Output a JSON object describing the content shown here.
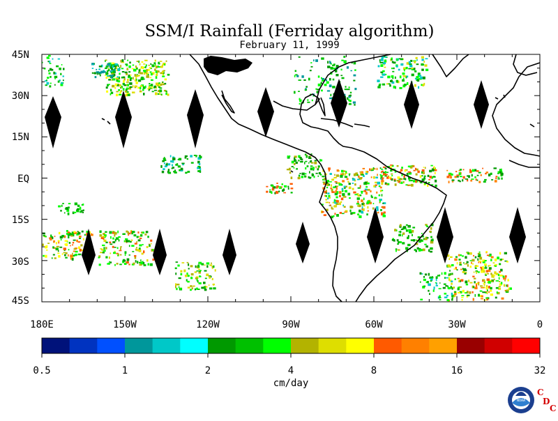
{
  "title": "SSM/I Rainfall (Ferriday algorithm)",
  "subtitle": "February 11, 1999",
  "lat_labels": [
    "45N",
    "30N",
    "15N",
    "EQ",
    "15S",
    "30S",
    "45S"
  ],
  "lon_labels": [
    "180E",
    "150W",
    "120W",
    "90W",
    "60W",
    "30W",
    "0"
  ],
  "colorbar": {
    "colors": [
      "#00127a",
      "#0033c0",
      "#0050ff",
      "#00979b",
      "#00c8c8",
      "#00ffff",
      "#009900",
      "#00c000",
      "#00ff00",
      "#b3b300",
      "#dede00",
      "#ffff00",
      "#ff5a00",
      "#ff8000",
      "#ffa000",
      "#990000",
      "#d00000",
      "#ff0000"
    ],
    "tick_labels": [
      "0.5",
      "1",
      "2",
      "4",
      "8",
      "16",
      "32"
    ],
    "unit_label": "cm/day"
  },
  "logo": {
    "noaa_text": "NOAA",
    "cdc_letters": [
      "C",
      "D",
      "C"
    ]
  }
}
